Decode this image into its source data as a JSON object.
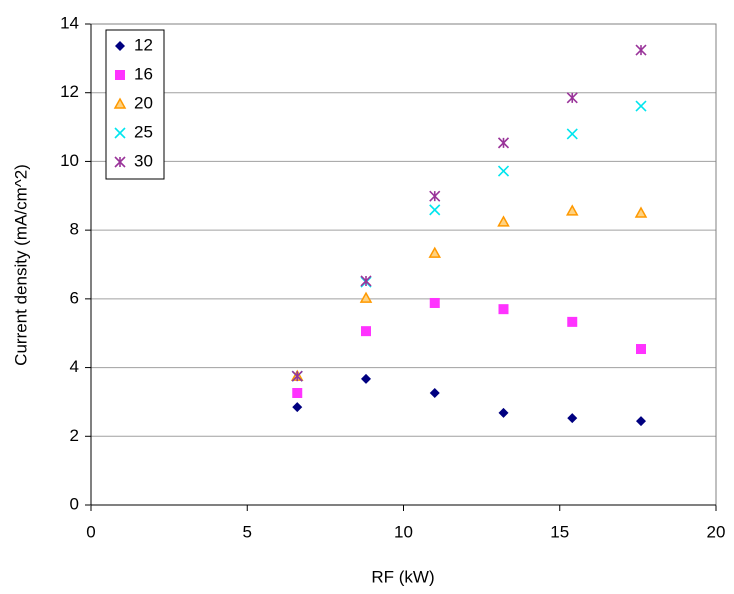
{
  "chart_data": {
    "type": "scatter",
    "xlabel": "RF (kW)",
    "ylabel": "Current density (mA/cm^2)",
    "x": [
      6.6,
      8.8,
      11,
      13.2,
      15.4,
      17.6
    ],
    "series": [
      {
        "name": "12",
        "color": "#000080",
        "marker": "diamond",
        "values": [
          2.85,
          3.67,
          3.26,
          2.68,
          2.53,
          2.44
        ]
      },
      {
        "name": "16",
        "color": "#ff33ff",
        "marker": "square",
        "values": [
          3.26,
          5.06,
          5.88,
          5.7,
          5.33,
          4.54
        ]
      },
      {
        "name": "20",
        "color": "#ff9900",
        "marker": "triangle",
        "values": [
          3.75,
          6.02,
          7.33,
          8.24,
          8.56,
          8.5
        ]
      },
      {
        "name": "25",
        "color": "#00e5ee",
        "marker": "x",
        "values": [
          3.75,
          6.49,
          8.59,
          9.72,
          10.8,
          11.61
        ]
      },
      {
        "name": "30",
        "color": "#993399",
        "marker": "asterisk",
        "values": [
          3.75,
          6.52,
          8.99,
          10.54,
          11.85,
          13.24
        ]
      }
    ],
    "xlim": [
      0,
      20
    ],
    "xticks": [
      0,
      5,
      10,
      15,
      20
    ],
    "ylim": [
      0,
      14
    ],
    "yticks": [
      0,
      2,
      4,
      6,
      8,
      10,
      12,
      14
    ],
    "grid": true,
    "legend": "upper-left"
  }
}
